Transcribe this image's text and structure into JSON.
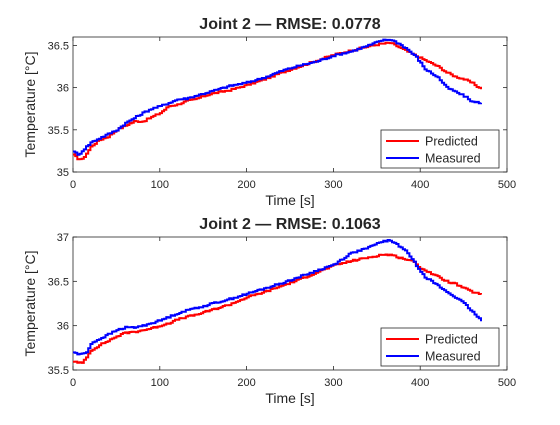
{
  "chart_data": [
    {
      "type": "line",
      "title": "Joint 2 — RMSE: 0.0778",
      "xlabel": "Time [s]",
      "ylabel": "Temperature [°C]",
      "xlim": [
        0,
        500
      ],
      "ylim": [
        35,
        36.6
      ],
      "xticks": [
        0,
        100,
        200,
        300,
        400,
        500
      ],
      "xtick_labels": [
        "0",
        "100",
        "200",
        "300",
        "400",
        "500"
      ],
      "yticks": [
        35,
        35.5,
        36,
        36.5
      ],
      "ytick_labels": [
        "35",
        "35.5",
        "36",
        "36.5"
      ],
      "grid": false,
      "legend_position": "bottom-right",
      "series": [
        {
          "name": "Predicted",
          "color": "#ff0000",
          "x": [
            0,
            5,
            10,
            15,
            20,
            30,
            40,
            50,
            60,
            70,
            80,
            90,
            100,
            110,
            120,
            130,
            140,
            150,
            160,
            180,
            200,
            220,
            240,
            260,
            280,
            300,
            320,
            340,
            355,
            365,
            375,
            390,
            400,
            410,
            420,
            430,
            440,
            450,
            460,
            470
          ],
          "y": [
            35.2,
            35.16,
            35.15,
            35.22,
            35.3,
            35.38,
            35.42,
            35.5,
            35.55,
            35.6,
            35.6,
            35.65,
            35.7,
            35.78,
            35.8,
            35.84,
            35.86,
            35.9,
            35.93,
            35.97,
            36.03,
            36.1,
            36.18,
            36.25,
            36.32,
            36.39,
            36.44,
            36.49,
            36.52,
            36.53,
            36.48,
            36.4,
            36.35,
            36.3,
            36.25,
            36.18,
            36.13,
            36.1,
            36.05,
            35.98
          ]
        },
        {
          "name": "Measured",
          "color": "#0000ff",
          "x": [
            0,
            5,
            10,
            15,
            20,
            30,
            40,
            50,
            60,
            70,
            80,
            90,
            100,
            110,
            120,
            130,
            140,
            150,
            160,
            180,
            200,
            220,
            240,
            260,
            280,
            300,
            320,
            340,
            355,
            365,
            375,
            385,
            395,
            405,
            420,
            430,
            440,
            450,
            460,
            470
          ],
          "y": [
            35.25,
            35.2,
            35.25,
            35.3,
            35.35,
            35.4,
            35.45,
            35.5,
            35.58,
            35.64,
            35.7,
            35.75,
            35.78,
            35.82,
            35.86,
            35.87,
            35.9,
            35.93,
            35.96,
            36.02,
            36.06,
            36.12,
            36.2,
            36.26,
            36.31,
            36.38,
            36.43,
            36.5,
            36.56,
            36.57,
            36.52,
            36.45,
            36.36,
            36.22,
            36.12,
            36.0,
            35.95,
            35.9,
            35.83,
            35.82
          ]
        }
      ]
    },
    {
      "type": "line",
      "title": "Joint 2 — RMSE: 0.1063",
      "xlabel": "Time [s]",
      "ylabel": "Temperature [°C]",
      "xlim": [
        0,
        500
      ],
      "ylim": [
        35.5,
        37
      ],
      "xticks": [
        0,
        100,
        200,
        300,
        400,
        500
      ],
      "xtick_labels": [
        "0",
        "100",
        "200",
        "300",
        "400",
        "500"
      ],
      "yticks": [
        35.5,
        36,
        36.5,
        37
      ],
      "ytick_labels": [
        "35.5",
        "36",
        "36.5",
        "37"
      ],
      "grid": false,
      "legend_position": "bottom-right",
      "series": [
        {
          "name": "Predicted",
          "color": "#ff0000",
          "x": [
            0,
            5,
            10,
            15,
            20,
            30,
            40,
            50,
            60,
            70,
            80,
            90,
            100,
            110,
            120,
            130,
            140,
            150,
            160,
            180,
            200,
            220,
            240,
            260,
            280,
            300,
            320,
            340,
            355,
            365,
            375,
            390,
            400,
            410,
            420,
            430,
            440,
            450,
            460,
            470
          ],
          "y": [
            35.6,
            35.58,
            35.58,
            35.65,
            35.72,
            35.78,
            35.83,
            35.88,
            35.92,
            35.93,
            35.95,
            35.97,
            36.0,
            36.03,
            36.07,
            36.1,
            36.12,
            36.15,
            36.18,
            36.24,
            36.32,
            36.38,
            36.45,
            36.52,
            36.6,
            36.68,
            36.73,
            36.77,
            36.8,
            36.8,
            36.77,
            36.73,
            36.65,
            36.6,
            36.55,
            36.5,
            36.47,
            36.42,
            36.38,
            36.35
          ]
        },
        {
          "name": "Measured",
          "color": "#0000ff",
          "x": [
            0,
            5,
            10,
            15,
            20,
            30,
            40,
            50,
            60,
            70,
            80,
            90,
            100,
            110,
            120,
            130,
            140,
            150,
            160,
            180,
            200,
            220,
            240,
            260,
            280,
            300,
            320,
            340,
            355,
            365,
            375,
            385,
            395,
            405,
            420,
            430,
            440,
            450,
            460,
            470
          ],
          "y": [
            35.7,
            35.68,
            35.68,
            35.7,
            35.8,
            35.85,
            35.9,
            35.95,
            35.98,
            35.98,
            36.0,
            36.03,
            36.06,
            36.1,
            36.14,
            36.17,
            36.2,
            36.22,
            36.25,
            36.3,
            36.36,
            36.42,
            36.48,
            36.55,
            36.62,
            36.69,
            36.82,
            36.88,
            36.95,
            36.96,
            36.9,
            36.82,
            36.68,
            36.55,
            36.45,
            36.38,
            36.32,
            36.25,
            36.15,
            36.05
          ]
        }
      ]
    }
  ]
}
